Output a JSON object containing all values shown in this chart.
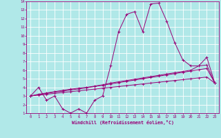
{
  "xlabel": "Windchill (Refroidissement éolien,°C)",
  "bg_color": "#b0e8e8",
  "grid_color": "#ffffff",
  "line_color": "#990077",
  "x_hours": [
    0,
    1,
    2,
    3,
    4,
    5,
    6,
    7,
    8,
    9,
    10,
    11,
    12,
    13,
    14,
    15,
    16,
    17,
    18,
    19,
    20,
    21,
    22,
    23
  ],
  "curve_main": [
    3.0,
    4.0,
    2.5,
    3.0,
    1.5,
    1.0,
    1.5,
    1.0,
    2.5,
    3.0,
    6.5,
    10.5,
    12.5,
    12.8,
    10.5,
    13.7,
    13.8,
    11.7,
    9.2,
    7.2,
    6.5,
    6.5,
    7.5,
    4.5
  ],
  "curve_lin1": [
    3.0,
    3.2,
    3.35,
    3.5,
    3.65,
    3.8,
    3.9,
    4.0,
    4.15,
    4.3,
    4.5,
    4.65,
    4.8,
    4.95,
    5.1,
    5.25,
    5.4,
    5.55,
    5.7,
    5.85,
    6.0,
    6.5,
    6.6,
    4.5
  ],
  "curve_lin2": [
    3.0,
    3.15,
    3.3,
    3.45,
    3.55,
    3.7,
    3.82,
    3.95,
    4.1,
    4.25,
    4.4,
    4.55,
    4.7,
    4.85,
    5.0,
    5.15,
    5.3,
    5.45,
    5.6,
    5.75,
    5.9,
    6.05,
    6.2,
    4.5
  ],
  "curve_lin3": [
    3.0,
    3.1,
    3.2,
    3.3,
    3.4,
    3.5,
    3.6,
    3.7,
    3.8,
    3.9,
    4.0,
    4.1,
    4.2,
    4.3,
    4.4,
    4.5,
    4.6,
    4.7,
    4.8,
    4.9,
    5.0,
    5.1,
    5.2,
    4.5
  ],
  "ylim": [
    1,
    14
  ],
  "xlim": [
    -0.5,
    23.5
  ],
  "yticks": [
    1,
    2,
    3,
    4,
    5,
    6,
    7,
    8,
    9,
    10,
    11,
    12,
    13,
    14
  ],
  "xticks": [
    0,
    1,
    2,
    3,
    4,
    5,
    6,
    7,
    8,
    9,
    10,
    11,
    12,
    13,
    14,
    15,
    16,
    17,
    18,
    19,
    20,
    21,
    22,
    23
  ]
}
